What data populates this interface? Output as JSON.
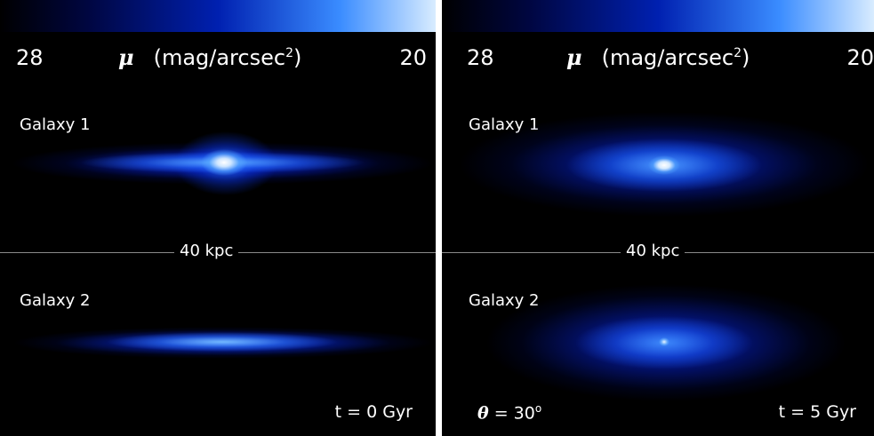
{
  "panels": [
    {
      "colorbar": {
        "low": "28",
        "high": "20",
        "mu_symbol": "μ",
        "unit_text": "(mag/arcsec",
        "unit_sup": "2",
        "unit_close": ")"
      },
      "galaxy1_label": "Galaxy 1",
      "galaxy2_label": "Galaxy 2",
      "scale_label": "40 kpc",
      "time_label": "t = 0 Gyr"
    },
    {
      "colorbar": {
        "low": "28",
        "high": "20",
        "mu_symbol": "μ",
        "unit_text": "(mag/arcsec",
        "unit_sup": "2",
        "unit_close": ")"
      },
      "galaxy1_label": "Galaxy 1",
      "galaxy2_label": "Galaxy 2",
      "scale_label": "40 kpc",
      "time_label": "t = 5 Gyr",
      "theta_symbol": "θ",
      "theta_text": " = 30",
      "theta_sup": "o"
    }
  ],
  "colors": {
    "background": "#000000",
    "colormap_dark": "#000640",
    "colormap_mid": "#0020b0",
    "colormap_bright": "#3a8cff",
    "colormap_peak": "#d8ecff"
  }
}
